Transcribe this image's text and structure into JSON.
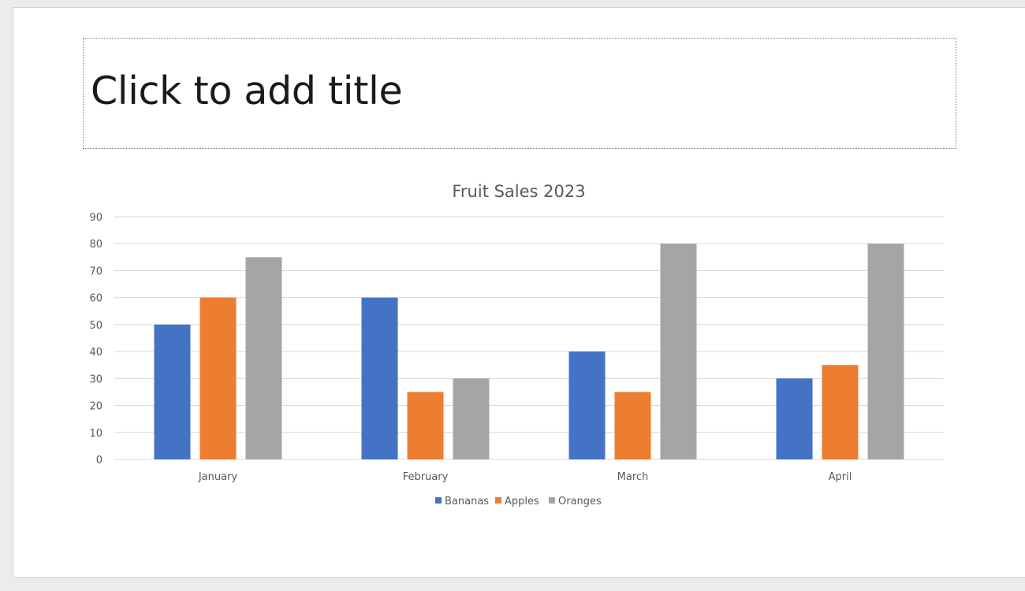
{
  "slide": {
    "title_placeholder": "Click to add title"
  },
  "chart_data": {
    "type": "bar",
    "title": "Fruit Sales 2023",
    "xlabel": "",
    "ylabel": "",
    "categories": [
      "January",
      "February",
      "March",
      "April"
    ],
    "series": [
      {
        "name": "Bananas",
        "values": [
          50,
          60,
          40,
          30
        ],
        "color": "#4472c4"
      },
      {
        "name": "Apples",
        "values": [
          60,
          25,
          25,
          35
        ],
        "color": "#ed7d31"
      },
      {
        "name": "Oranges",
        "values": [
          75,
          30,
          80,
          80
        ],
        "color": "#a5a5a5"
      }
    ],
    "ylim": [
      0,
      90
    ],
    "yticks": [
      0,
      10,
      20,
      30,
      40,
      50,
      60,
      70,
      80,
      90
    ],
    "grid": true,
    "legend_position": "bottom",
    "gridline_color": "#d9d9d9"
  }
}
